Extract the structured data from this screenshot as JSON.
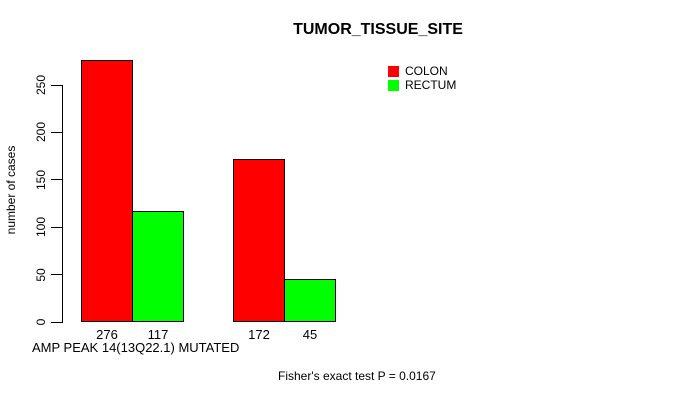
{
  "chart_data": {
    "type": "bar",
    "title": "TUMOR_TISSUE_SITE",
    "xlabel": "AMP PEAK 14(13Q22.1) MUTATED",
    "ylabel": "number of cases",
    "ylim": [
      0,
      250
    ],
    "yticks": [
      0,
      50,
      100,
      150,
      200,
      250
    ],
    "categories": [
      "",
      ""
    ],
    "series": [
      {
        "name": "COLON",
        "color": "#ff0000",
        "values": [
          276,
          172
        ]
      },
      {
        "name": "RECTUM",
        "color": "#00ff00",
        "values": [
          117,
          45
        ]
      }
    ],
    "bar_value_labels": [
      [
        "276",
        "117"
      ],
      [
        "172",
        "45"
      ]
    ],
    "annotation": "Fisher's exact test P = 0.0167",
    "legend_position": "top-right",
    "grid": false,
    "background": "#ffffff",
    "bar_border_color": "#000000",
    "text_color": "#000000"
  }
}
